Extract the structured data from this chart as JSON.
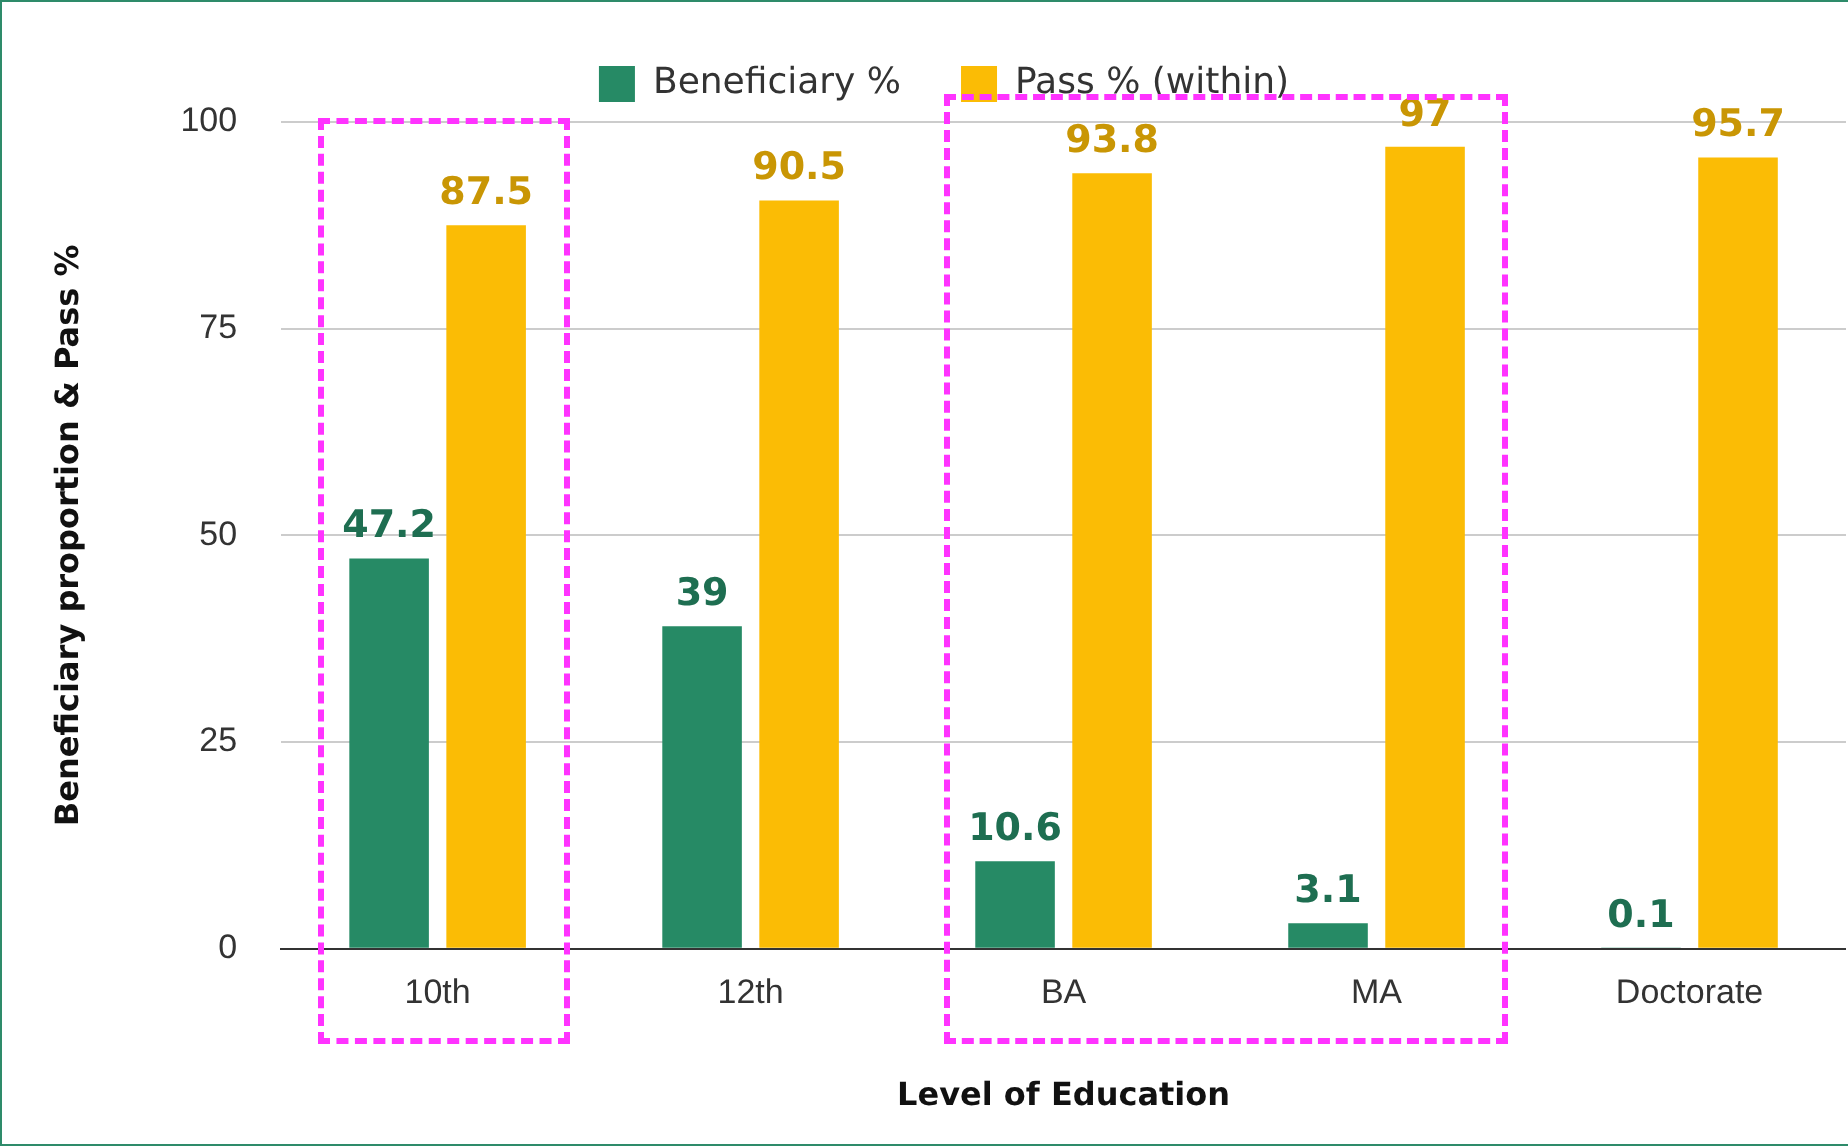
{
  "chart_data": {
    "type": "bar",
    "xlabel": "Level of Education",
    "ylabel": "Beneficiary proportion & Pass %",
    "categories": [
      "10th",
      "12th",
      "BA",
      "MA",
      "Doctorate"
    ],
    "series": [
      {
        "name": "Beneficiary %",
        "color": "#268a65",
        "values": [
          47.2,
          39,
          10.6,
          3.1,
          0.1
        ]
      },
      {
        "name": "Pass % (within)",
        "color": "#fbbc05",
        "values": [
          87.5,
          90.5,
          93.8,
          97,
          95.7
        ]
      }
    ],
    "ylim": [
      0,
      100
    ],
    "yticks": [
      0,
      25,
      50,
      75,
      100
    ],
    "grid": "y",
    "legend": "top",
    "data_labels": true
  }
}
